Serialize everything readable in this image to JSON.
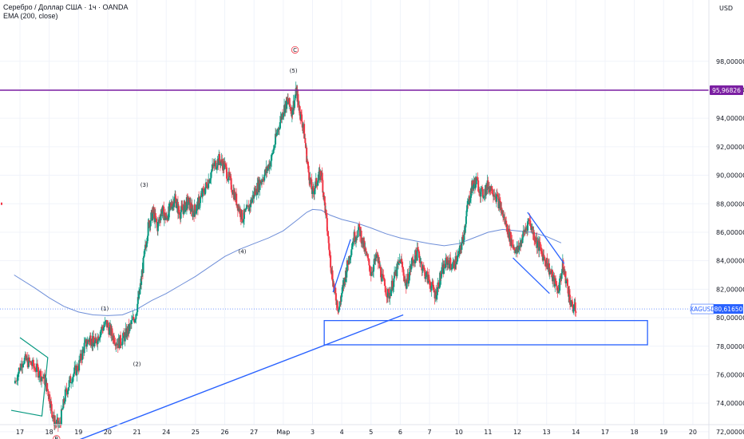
{
  "chart_data": {
    "type": "candlestick",
    "title": "Серебро / Доллар США · 1ч · OANDA",
    "indicator": "EMA (200, close)",
    "currency": "USD",
    "symbol": "XAGUSD",
    "last_price": 80.6165,
    "last_price_label": "80,61650",
    "level_price": 95.96826,
    "level_label": "95,96826",
    "ylim": [
      71.0,
      99.0
    ],
    "y_ticks": [
      {
        "value": 72,
        "label": "72,00000"
      },
      {
        "value": 74,
        "label": "74,00000"
      },
      {
        "value": 76,
        "label": "76,00000"
      },
      {
        "value": 78,
        "label": "78,00000"
      },
      {
        "value": 80,
        "label": "80,00000"
      },
      {
        "value": 82,
        "label": "82,00000"
      },
      {
        "value": 84,
        "label": "84,00000"
      },
      {
        "value": 86,
        "label": "86,00000"
      },
      {
        "value": 88,
        "label": "88,00000"
      },
      {
        "value": 90,
        "label": "90,00000"
      },
      {
        "value": 92,
        "label": "92,00000"
      },
      {
        "value": 94,
        "label": "94,00000"
      },
      {
        "value": 96,
        "label": "96,00000"
      },
      {
        "value": 98,
        "label": "98,00000"
      }
    ],
    "x_ticks": [
      "17",
      "18",
      "19",
      "20",
      "21",
      "24",
      "25",
      "26",
      "27",
      "Мар",
      "3",
      "4",
      "5",
      "6",
      "7",
      "10",
      "11",
      "12",
      "13",
      "14",
      "17",
      "18",
      "19",
      "20"
    ],
    "colors": {
      "up": "#089981",
      "down": "#f23645",
      "ema": "#6e8ed8",
      "drawing": "#2962ff",
      "level": "#7b1fa2",
      "last": "#2962ff"
    },
    "wave_labels": [
      {
        "label": "(1)",
        "x": 2.9,
        "y": 80.5
      },
      {
        "label": "(2)",
        "x": 4.0,
        "y": 76.6
      },
      {
        "label": "(3)",
        "x": 4.25,
        "y": 89.2
      },
      {
        "label": "(4)",
        "x": 7.6,
        "y": 84.5
      },
      {
        "label": "(5)",
        "x": 9.35,
        "y": 97.2
      }
    ],
    "markers": [
      {
        "label": "B",
        "x": 1.25,
        "y": 71.5,
        "color": "#f23645"
      },
      {
        "label": "C",
        "x": 9.4,
        "y": 98.8,
        "color": "#f23645"
      }
    ],
    "trendline": {
      "x1": 1.1,
      "y1": 70.7,
      "x2": 13.1,
      "y2": 80.2
    },
    "zone": {
      "x1": 10.4,
      "x2": 21.45,
      "y_top": 79.8,
      "y_bottom": 78.1
    },
    "wedge_left": [
      [
        0.0,
        78.6
      ],
      [
        0.95,
        77.2
      ],
      [
        0.75,
        73.1
      ],
      [
        -0.3,
        73.5
      ]
    ],
    "channel_lines": [
      {
        "x1": 10.7,
        "y1": 81.8,
        "x2": 11.3,
        "y2": 85.5
      },
      {
        "x1": 16.85,
        "y1": 84.2,
        "x2": 18.1,
        "y2": 81.7
      },
      {
        "x1": 17.35,
        "y1": 87.4,
        "x2": 18.6,
        "y2": 83.8
      }
    ],
    "ema": [
      [
        -0.2,
        83.0
      ],
      [
        0.5,
        82.1
      ],
      [
        1.0,
        81.4
      ],
      [
        1.5,
        80.8
      ],
      [
        2.0,
        80.4
      ],
      [
        2.5,
        80.2
      ],
      [
        3.0,
        80.15
      ],
      [
        3.5,
        80.2
      ],
      [
        4.0,
        80.6
      ],
      [
        4.5,
        81.2
      ],
      [
        5.0,
        81.7
      ],
      [
        5.5,
        82.3
      ],
      [
        6.0,
        82.9
      ],
      [
        6.5,
        83.6
      ],
      [
        7.0,
        84.3
      ],
      [
        7.5,
        84.8
      ],
      [
        8.0,
        85.2
      ],
      [
        8.5,
        85.6
      ],
      [
        9.0,
        86.1
      ],
      [
        9.5,
        86.9
      ],
      [
        9.8,
        87.4
      ],
      [
        10.0,
        87.6
      ],
      [
        10.3,
        87.55
      ],
      [
        10.6,
        87.2
      ],
      [
        11.0,
        86.9
      ],
      [
        11.5,
        86.65
      ],
      [
        12.0,
        86.3
      ],
      [
        12.5,
        85.9
      ],
      [
        13.0,
        85.6
      ],
      [
        13.5,
        85.4
      ],
      [
        14.0,
        85.2
      ],
      [
        14.5,
        85.05
      ],
      [
        15.0,
        85.2
      ],
      [
        15.5,
        85.6
      ],
      [
        16.0,
        86.0
      ],
      [
        16.5,
        86.2
      ],
      [
        17.0,
        86.1
      ],
      [
        17.5,
        86.0
      ],
      [
        18.0,
        85.7
      ],
      [
        18.5,
        85.25
      ]
    ],
    "price_path": [
      [
        -0.2,
        75.4
      ],
      [
        0.1,
        77.1
      ],
      [
        0.35,
        76.8
      ],
      [
        0.6,
        76.3
      ],
      [
        0.85,
        75.6
      ],
      [
        1.0,
        74.5
      ],
      [
        1.15,
        72.8
      ],
      [
        1.35,
        72.4
      ],
      [
        1.55,
        74.6
      ],
      [
        1.75,
        75.8
      ],
      [
        2.0,
        76.6
      ],
      [
        2.2,
        78.0
      ],
      [
        2.4,
        78.6
      ],
      [
        2.55,
        78.1
      ],
      [
        2.75,
        79.1
      ],
      [
        2.95,
        79.6
      ],
      [
        3.15,
        78.8
      ],
      [
        3.35,
        78.2
      ],
      [
        3.55,
        78.6
      ],
      [
        3.75,
        79.3
      ],
      [
        3.95,
        80.2
      ],
      [
        4.1,
        81.9
      ],
      [
        4.25,
        84.3
      ],
      [
        4.4,
        86.6
      ],
      [
        4.55,
        87.4
      ],
      [
        4.7,
        86.4
      ],
      [
        4.85,
        87.6
      ],
      [
        5.0,
        86.9
      ],
      [
        5.15,
        87.8
      ],
      [
        5.3,
        88.4
      ],
      [
        5.45,
        87.3
      ],
      [
        5.6,
        87.7
      ],
      [
        5.75,
        88.2
      ],
      [
        5.9,
        87.4
      ],
      [
        6.05,
        87.8
      ],
      [
        6.2,
        88.5
      ],
      [
        6.4,
        89.4
      ],
      [
        6.6,
        90.6
      ],
      [
        6.8,
        91.1
      ],
      [
        7.0,
        90.6
      ],
      [
        7.2,
        89.4
      ],
      [
        7.4,
        88.2
      ],
      [
        7.6,
        87.0
      ],
      [
        7.8,
        87.6
      ],
      [
        8.0,
        88.7
      ],
      [
        8.2,
        89.5
      ],
      [
        8.4,
        90.2
      ],
      [
        8.6,
        91.2
      ],
      [
        8.8,
        93.1
      ],
      [
        9.0,
        94.6
      ],
      [
        9.15,
        95.2
      ],
      [
        9.3,
        94.5
      ],
      [
        9.45,
        95.9
      ],
      [
        9.55,
        94.7
      ],
      [
        9.7,
        93.2
      ],
      [
        9.85,
        90.4
      ],
      [
        10.0,
        88.7
      ],
      [
        10.15,
        89.6
      ],
      [
        10.3,
        90.2
      ],
      [
        10.45,
        87.3
      ],
      [
        10.6,
        84.2
      ],
      [
        10.75,
        81.8
      ],
      [
        10.9,
        80.6
      ],
      [
        11.05,
        82.2
      ],
      [
        11.2,
        83.8
      ],
      [
        11.4,
        85.6
      ],
      [
        11.6,
        86.2
      ],
      [
        11.8,
        84.6
      ],
      [
        12.0,
        83.2
      ],
      [
        12.2,
        84.3
      ],
      [
        12.4,
        82.6
      ],
      [
        12.6,
        81.5
      ],
      [
        12.8,
        82.8
      ],
      [
        13.0,
        84.1
      ],
      [
        13.2,
        82.3
      ],
      [
        13.4,
        83.9
      ],
      [
        13.6,
        84.6
      ],
      [
        13.8,
        83.3
      ],
      [
        14.0,
        82.5
      ],
      [
        14.2,
        81.6
      ],
      [
        14.4,
        83.1
      ],
      [
        14.6,
        84.0
      ],
      [
        14.8,
        83.6
      ],
      [
        15.0,
        84.4
      ],
      [
        15.15,
        85.6
      ],
      [
        15.3,
        87.8
      ],
      [
        15.45,
        89.2
      ],
      [
        15.6,
        89.6
      ],
      [
        15.8,
        88.6
      ],
      [
        16.0,
        89.3
      ],
      [
        16.2,
        88.9
      ],
      [
        16.4,
        87.9
      ],
      [
        16.6,
        86.6
      ],
      [
        16.8,
        85.3
      ],
      [
        17.0,
        84.6
      ],
      [
        17.2,
        85.8
      ],
      [
        17.4,
        86.9
      ],
      [
        17.6,
        85.6
      ],
      [
        17.8,
        84.7
      ],
      [
        18.0,
        83.9
      ],
      [
        18.2,
        82.8
      ],
      [
        18.4,
        81.9
      ],
      [
        18.55,
        83.6
      ],
      [
        18.7,
        82.4
      ],
      [
        18.85,
        80.8
      ],
      [
        19.0,
        80.6
      ]
    ]
  }
}
